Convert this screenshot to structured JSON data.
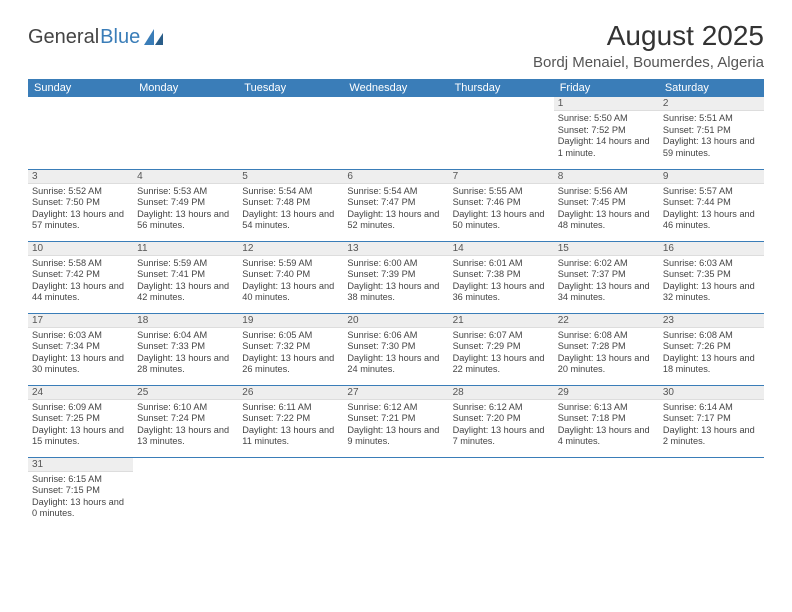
{
  "logo": {
    "text1": "General",
    "text2": "Blue"
  },
  "title": "August 2025",
  "location": "Bordj Menaiel, Boumerdes, Algeria",
  "colors": {
    "header_bg": "#3a7db8",
    "header_fg": "#ffffff",
    "daynum_bg": "#eeeeee",
    "border": "#3a7db8"
  },
  "weekdays": [
    "Sunday",
    "Monday",
    "Tuesday",
    "Wednesday",
    "Thursday",
    "Friday",
    "Saturday"
  ],
  "weeks": [
    [
      null,
      null,
      null,
      null,
      null,
      {
        "n": "1",
        "sr": "5:50 AM",
        "ss": "7:52 PM",
        "dl": "14 hours and 1 minute."
      },
      {
        "n": "2",
        "sr": "5:51 AM",
        "ss": "7:51 PM",
        "dl": "13 hours and 59 minutes."
      }
    ],
    [
      {
        "n": "3",
        "sr": "5:52 AM",
        "ss": "7:50 PM",
        "dl": "13 hours and 57 minutes."
      },
      {
        "n": "4",
        "sr": "5:53 AM",
        "ss": "7:49 PM",
        "dl": "13 hours and 56 minutes."
      },
      {
        "n": "5",
        "sr": "5:54 AM",
        "ss": "7:48 PM",
        "dl": "13 hours and 54 minutes."
      },
      {
        "n": "6",
        "sr": "5:54 AM",
        "ss": "7:47 PM",
        "dl": "13 hours and 52 minutes."
      },
      {
        "n": "7",
        "sr": "5:55 AM",
        "ss": "7:46 PM",
        "dl": "13 hours and 50 minutes."
      },
      {
        "n": "8",
        "sr": "5:56 AM",
        "ss": "7:45 PM",
        "dl": "13 hours and 48 minutes."
      },
      {
        "n": "9",
        "sr": "5:57 AM",
        "ss": "7:44 PM",
        "dl": "13 hours and 46 minutes."
      }
    ],
    [
      {
        "n": "10",
        "sr": "5:58 AM",
        "ss": "7:42 PM",
        "dl": "13 hours and 44 minutes."
      },
      {
        "n": "11",
        "sr": "5:59 AM",
        "ss": "7:41 PM",
        "dl": "13 hours and 42 minutes."
      },
      {
        "n": "12",
        "sr": "5:59 AM",
        "ss": "7:40 PM",
        "dl": "13 hours and 40 minutes."
      },
      {
        "n": "13",
        "sr": "6:00 AM",
        "ss": "7:39 PM",
        "dl": "13 hours and 38 minutes."
      },
      {
        "n": "14",
        "sr": "6:01 AM",
        "ss": "7:38 PM",
        "dl": "13 hours and 36 minutes."
      },
      {
        "n": "15",
        "sr": "6:02 AM",
        "ss": "7:37 PM",
        "dl": "13 hours and 34 minutes."
      },
      {
        "n": "16",
        "sr": "6:03 AM",
        "ss": "7:35 PM",
        "dl": "13 hours and 32 minutes."
      }
    ],
    [
      {
        "n": "17",
        "sr": "6:03 AM",
        "ss": "7:34 PM",
        "dl": "13 hours and 30 minutes."
      },
      {
        "n": "18",
        "sr": "6:04 AM",
        "ss": "7:33 PM",
        "dl": "13 hours and 28 minutes."
      },
      {
        "n": "19",
        "sr": "6:05 AM",
        "ss": "7:32 PM",
        "dl": "13 hours and 26 minutes."
      },
      {
        "n": "20",
        "sr": "6:06 AM",
        "ss": "7:30 PM",
        "dl": "13 hours and 24 minutes."
      },
      {
        "n": "21",
        "sr": "6:07 AM",
        "ss": "7:29 PM",
        "dl": "13 hours and 22 minutes."
      },
      {
        "n": "22",
        "sr": "6:08 AM",
        "ss": "7:28 PM",
        "dl": "13 hours and 20 minutes."
      },
      {
        "n": "23",
        "sr": "6:08 AM",
        "ss": "7:26 PM",
        "dl": "13 hours and 18 minutes."
      }
    ],
    [
      {
        "n": "24",
        "sr": "6:09 AM",
        "ss": "7:25 PM",
        "dl": "13 hours and 15 minutes."
      },
      {
        "n": "25",
        "sr": "6:10 AM",
        "ss": "7:24 PM",
        "dl": "13 hours and 13 minutes."
      },
      {
        "n": "26",
        "sr": "6:11 AM",
        "ss": "7:22 PM",
        "dl": "13 hours and 11 minutes."
      },
      {
        "n": "27",
        "sr": "6:12 AM",
        "ss": "7:21 PM",
        "dl": "13 hours and 9 minutes."
      },
      {
        "n": "28",
        "sr": "6:12 AM",
        "ss": "7:20 PM",
        "dl": "13 hours and 7 minutes."
      },
      {
        "n": "29",
        "sr": "6:13 AM",
        "ss": "7:18 PM",
        "dl": "13 hours and 4 minutes."
      },
      {
        "n": "30",
        "sr": "6:14 AM",
        "ss": "7:17 PM",
        "dl": "13 hours and 2 minutes."
      }
    ],
    [
      {
        "n": "31",
        "sr": "6:15 AM",
        "ss": "7:15 PM",
        "dl": "13 hours and 0 minutes."
      },
      null,
      null,
      null,
      null,
      null,
      null
    ]
  ],
  "labels": {
    "sunrise": "Sunrise: ",
    "sunset": "Sunset: ",
    "daylight": "Daylight: "
  }
}
